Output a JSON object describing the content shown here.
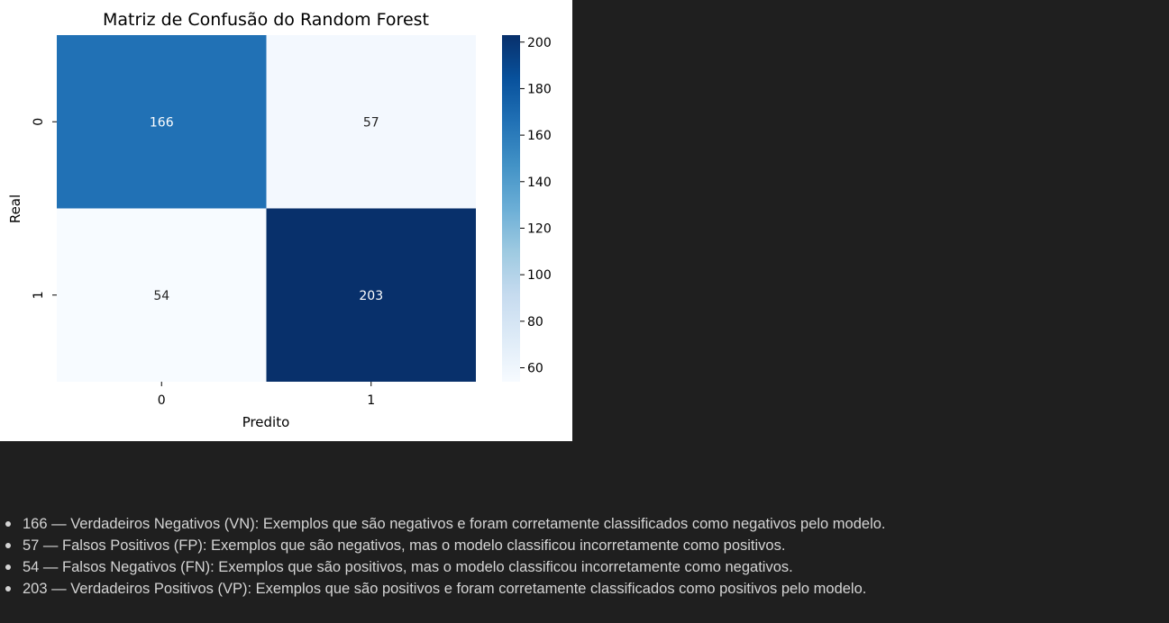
{
  "chart_data": {
    "type": "heatmap",
    "title": "Matriz de Confusão do Random Forest",
    "xlabel": "Predito",
    "ylabel": "Real",
    "x_categories": [
      "0",
      "1"
    ],
    "y_categories": [
      "0",
      "1"
    ],
    "matrix": [
      [
        166,
        57
      ],
      [
        54,
        203
      ]
    ],
    "colormap": "Blues",
    "colorbar": {
      "ticks": [
        60,
        80,
        100,
        120,
        140,
        160,
        180,
        200
      ],
      "range": [
        54,
        203
      ]
    }
  },
  "notes": [
    "166 — Verdadeiros Negativos (VN): Exemplos que são negativos e foram corretamente classificados como negativos pelo modelo.",
    "57 — Falsos Positivos (FP): Exemplos que são negativos, mas o modelo classificou incorretamente como positivos.",
    "54 — Falsos Negativos (FN): Exemplos que são positivos, mas o modelo classificou incorretamente como negativos.",
    "203 — Verdadeiros Positivos (VP): Exemplos que são positivos e foram corretamente classificados como positivos pelo modelo."
  ]
}
